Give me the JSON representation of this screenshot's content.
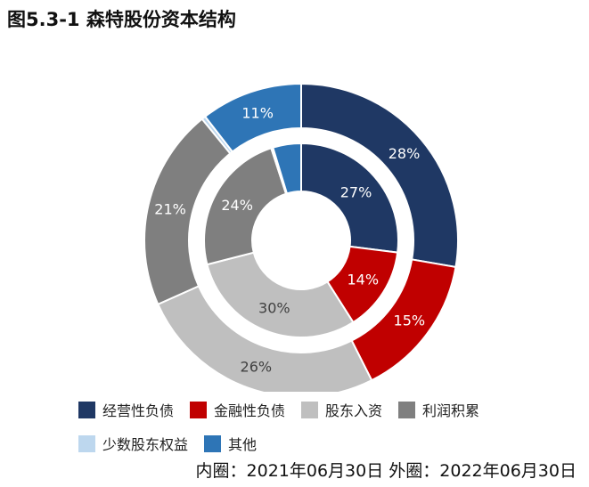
{
  "title": "图5.3-1 森特股份资本结构",
  "note": "内圈：2021年06月30日 外圈：2022年06月30日",
  "chart_data": {
    "type": "pie",
    "subtype": "double-donut",
    "categories": [
      "经营性负债",
      "金融性负债",
      "股东入资",
      "利润积累",
      "少数股东权益",
      "其他"
    ],
    "colors": [
      "#1f3864",
      "#c00000",
      "#bfbfbf",
      "#7f7f7f",
      "#bdd7ee",
      "#2e75b6"
    ],
    "label_colors": [
      "#ffffff",
      "#ffffff",
      "#404040",
      "#ffffff",
      "#404040",
      "#ffffff"
    ],
    "series": [
      {
        "ring": "inner",
        "values": [
          27,
          14,
          30,
          24,
          0.3,
          4.7
        ],
        "labels": [
          "27%",
          "14%",
          "30%",
          "24%",
          "",
          ""
        ]
      },
      {
        "ring": "outer",
        "values": [
          28,
          15,
          26,
          21,
          0.4,
          10.6
        ],
        "labels": [
          "28%",
          "15%",
          "26%",
          "21%",
          "",
          "11%"
        ]
      }
    ],
    "legend": {
      "position": "bottom"
    }
  }
}
